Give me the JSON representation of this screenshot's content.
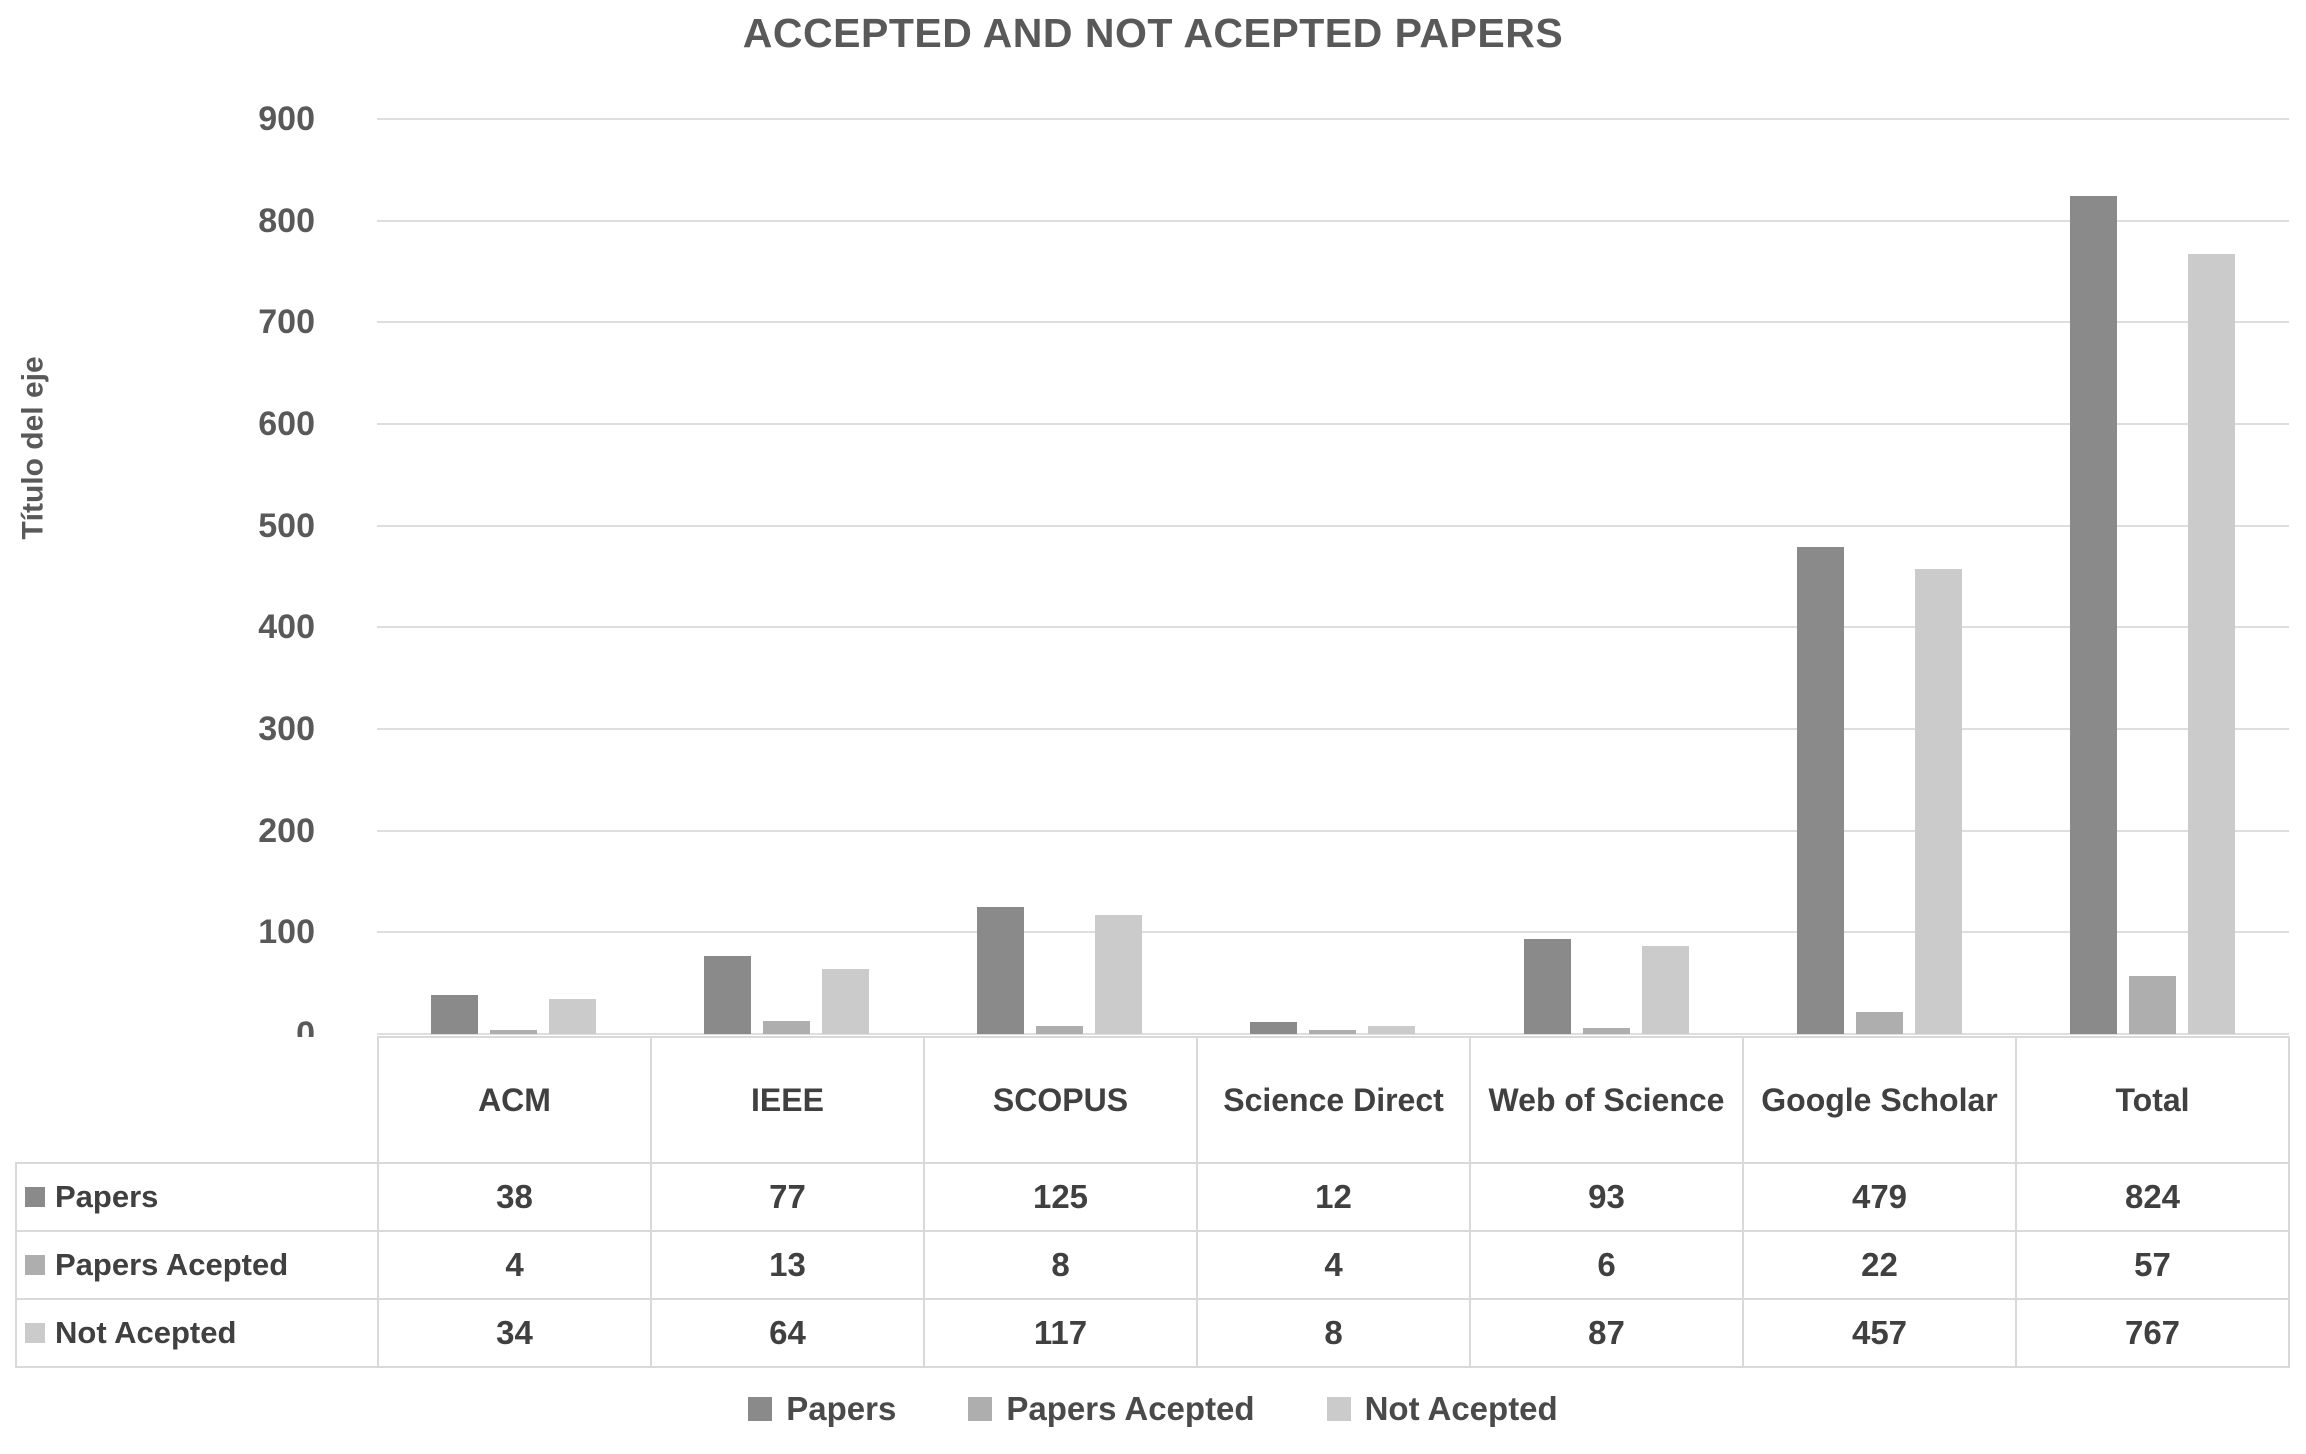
{
  "title": "ACCEPTED AND NOT ACEPTED PAPERS",
  "y_axis_title": "Título del eje",
  "chart_data": {
    "type": "bar",
    "title": "ACCEPTED AND NOT ACEPTED PAPERS",
    "xlabel": "",
    "ylabel": "Título del eje",
    "ylim": [
      0,
      900
    ],
    "yticks": [
      0,
      100,
      200,
      300,
      400,
      500,
      600,
      700,
      800,
      900
    ],
    "grid": true,
    "legend_position": "bottom",
    "categories": [
      "ACM",
      "IEEE",
      "SCOPUS",
      "Science Direct",
      "Web of Science",
      "Google Scholar",
      "Total"
    ],
    "series": [
      {
        "name": "Papers",
        "color": "#8a8a8a",
        "values": [
          38,
          77,
          125,
          12,
          93,
          479,
          824
        ]
      },
      {
        "name": "Papers Acepted",
        "color": "#aeaeae",
        "values": [
          4,
          13,
          8,
          4,
          6,
          22,
          57
        ]
      },
      {
        "name": "Not Acepted",
        "color": "#cbcbcb",
        "values": [
          34,
          64,
          117,
          8,
          87,
          457,
          767
        ]
      }
    ]
  },
  "colors": {
    "text_primary": "#595959",
    "text_table": "#404040",
    "gridline": "#dedede",
    "table_border": "#d9d9d9"
  }
}
